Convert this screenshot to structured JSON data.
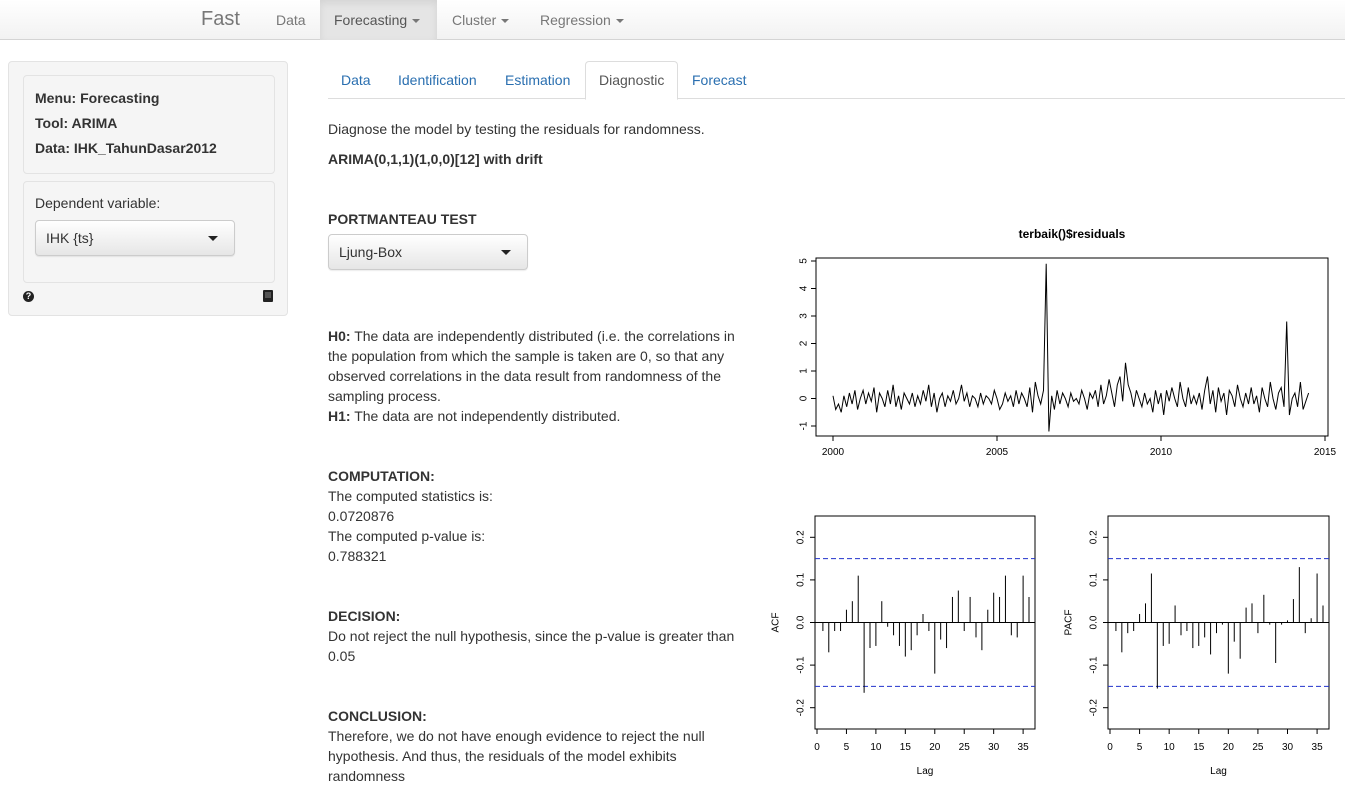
{
  "navbar": {
    "brand": "Fast",
    "items": [
      {
        "label": "Data",
        "dropdown": false
      },
      {
        "label": "Forecasting",
        "dropdown": true,
        "active": true
      },
      {
        "label": "Cluster",
        "dropdown": true
      },
      {
        "label": "Regression",
        "dropdown": true
      }
    ]
  },
  "sidebar": {
    "menu": "Menu: Forecasting",
    "tool": "Tool: ARIMA",
    "data": "Data: IHK_TahunDasar2012",
    "dependent_label": "Dependent variable:",
    "dependent_value": "IHK {ts}",
    "help_icon": "question-circle-icon",
    "book_icon": "book-icon"
  },
  "tabs": [
    "Data",
    "Identification",
    "Estimation",
    "Diagnostic",
    "Forecast"
  ],
  "active_tab": "Diagnostic",
  "main": {
    "intro": "Diagnose the model by testing the residuals for randomness.",
    "model": "ARIMA(0,1,1)(1,0,0)[12] with drift",
    "portmanteau_heading": "PORTMANTEAU TEST",
    "portmanteau_value": "Ljung-Box",
    "h0_label": "H0:",
    "h0_text": "The data are independently distributed (i.e. the correlations in the population from which the sample is taken are 0, so that any observed correlations in the data result from randomness of the sampling process.",
    "h1_label": "H1:",
    "h1_text": "The data are not independently distributed.",
    "computation_heading": "COMPUTATION:",
    "stat_label": "The computed statistics is:",
    "stat_value": "0.0720876",
    "pvalue_label": "The computed p-value is:",
    "pvalue_value": "0.788321",
    "decision_heading": "DECISION:",
    "decision_text": "Do not reject the null hypothesis, since the p-value is greater than 0.05",
    "conclusion_heading": "CONCLUSION:",
    "conclusion_text": "Therefore, we do not have enough evidence to reject the null hypothesis. And thus, the residuals of the model exhibits randomness"
  },
  "chart_data": [
    {
      "type": "line",
      "title": "terbaik()$residuals",
      "xlim": [
        2000,
        2015
      ],
      "ylim": [
        -1,
        5
      ],
      "x_ticks": [
        2000,
        2005,
        2010,
        2015
      ],
      "y_ticks": [
        -1,
        0,
        1,
        2,
        3,
        4,
        5
      ],
      "x_start": 2000.0,
      "x_step": 0.08333,
      "values": [
        0.1,
        -0.4,
        -0.2,
        -0.5,
        0.1,
        -0.3,
        0.2,
        -0.2,
        0.3,
        -0.4,
        0.0,
        0.3,
        -0.2,
        0.2,
        -0.1,
        0.4,
        -0.5,
        0.2,
        0.0,
        -0.3,
        0.3,
        -0.2,
        0.5,
        -0.3,
        0.1,
        -0.4,
        0.2,
        0.0,
        -0.2,
        0.2,
        -0.3,
        0.1,
        -0.2,
        0.3,
        -0.1,
        0.5,
        -0.3,
        0.2,
        -0.5,
        0.0,
        0.2,
        -0.3,
        0.1,
        -0.1,
        0.3,
        -0.2,
        0.0,
        0.5,
        -0.1,
        0.2,
        -0.3,
        0.1,
        0.0,
        -0.3,
        0.2,
        -0.2,
        0.1,
        0.0,
        -0.2,
        0.3,
        0.0,
        -0.4,
        -0.2,
        0.2,
        -0.1,
        0.1,
        -0.3,
        0.3,
        -0.2,
        0.2,
        0.0,
        -0.3,
        0.4,
        -0.5,
        0.6,
        0.1,
        -0.2,
        0.3,
        4.9,
        -1.2,
        0.1,
        -0.4,
        0.3,
        -0.2,
        0.2,
        0.0,
        -0.3,
        0.2,
        -0.1,
        0.0,
        -0.2,
        0.3,
        0.0,
        -0.4,
        0.2,
        0.0,
        0.3,
        -0.3,
        0.5,
        -0.2,
        0.1,
        0.7,
        0.2,
        -0.3,
        0.5,
        0.8,
        -0.1,
        1.3,
        0.5,
        0.2,
        -0.3,
        0.3,
        0.0,
        -0.3,
        0.2,
        -0.2,
        0.0,
        -0.5,
        0.3,
        -0.2,
        0.2,
        -0.6,
        0.3,
        -0.1,
        0.4,
        0.0,
        -0.3,
        0.6,
        0.0,
        -0.3,
        0.4,
        -0.2,
        0.1,
        -0.2,
        0.2,
        -0.4,
        0.3,
        0.8,
        -0.2,
        0.3,
        -0.5,
        0.4,
        -0.1,
        0.2,
        -0.6,
        0.3,
        0.1,
        -0.3,
        0.5,
        0.0,
        -0.3,
        0.2,
        -0.2,
        0.4,
        -0.2,
        0.1,
        -0.5,
        0.4,
        0.0,
        -0.3,
        0.6,
        0.0,
        -0.4,
        0.2,
        0.4,
        -0.3,
        2.8,
        -0.6,
        0.0,
        0.2,
        -0.3,
        0.6,
        -0.4,
        -0.1,
        0.2
      ]
    },
    {
      "type": "bar",
      "ylabel": "ACF",
      "xlabel": "Lag",
      "xlim": [
        0,
        36
      ],
      "ylim": [
        -0.2,
        0.2
      ],
      "x_ticks": [
        0,
        5,
        10,
        15,
        20,
        25,
        30,
        35
      ],
      "y_ticks": [
        -0.2,
        -0.1,
        0.0,
        0.1,
        0.2
      ],
      "confidence_bound": 0.15,
      "lags": [
        1,
        2,
        3,
        4,
        5,
        6,
        7,
        8,
        9,
        10,
        11,
        12,
        13,
        14,
        15,
        16,
        17,
        18,
        19,
        20,
        21,
        22,
        23,
        24,
        25,
        26,
        27,
        28,
        29,
        30,
        31,
        32,
        33,
        34,
        35,
        36
      ],
      "values": [
        -0.02,
        -0.07,
        -0.02,
        -0.02,
        0.03,
        0.05,
        0.11,
        -0.165,
        -0.06,
        -0.055,
        0.05,
        -0.01,
        -0.03,
        -0.055,
        -0.08,
        -0.065,
        -0.03,
        0.02,
        -0.02,
        -0.12,
        -0.04,
        -0.06,
        0.06,
        0.075,
        -0.02,
        0.06,
        -0.035,
        -0.065,
        0.03,
        0.07,
        0.06,
        0.11,
        -0.03,
        -0.035,
        0.11,
        0.06
      ]
    },
    {
      "type": "bar",
      "ylabel": "PACF",
      "xlabel": "Lag",
      "xlim": [
        0,
        36
      ],
      "ylim": [
        -0.2,
        0.2
      ],
      "x_ticks": [
        0,
        5,
        10,
        15,
        20,
        25,
        30,
        35
      ],
      "y_ticks": [
        -0.2,
        -0.1,
        0.0,
        0.1,
        0.2
      ],
      "confidence_bound": 0.15,
      "lags": [
        1,
        2,
        3,
        4,
        5,
        6,
        7,
        8,
        9,
        10,
        11,
        12,
        13,
        14,
        15,
        16,
        17,
        18,
        19,
        20,
        21,
        22,
        23,
        24,
        25,
        26,
        27,
        28,
        29,
        30,
        31,
        32,
        33,
        34,
        35,
        36
      ],
      "values": [
        -0.02,
        -0.07,
        -0.025,
        -0.02,
        0.02,
        0.045,
        0.115,
        -0.155,
        -0.055,
        -0.05,
        0.04,
        -0.03,
        -0.02,
        -0.06,
        -0.055,
        -0.035,
        -0.075,
        -0.025,
        -0.005,
        -0.12,
        -0.045,
        -0.085,
        0.035,
        0.045,
        -0.025,
        0.065,
        -0.005,
        -0.095,
        -0.005,
        0.005,
        0.055,
        0.13,
        -0.025,
        0.01,
        0.115,
        0.04
      ]
    }
  ]
}
